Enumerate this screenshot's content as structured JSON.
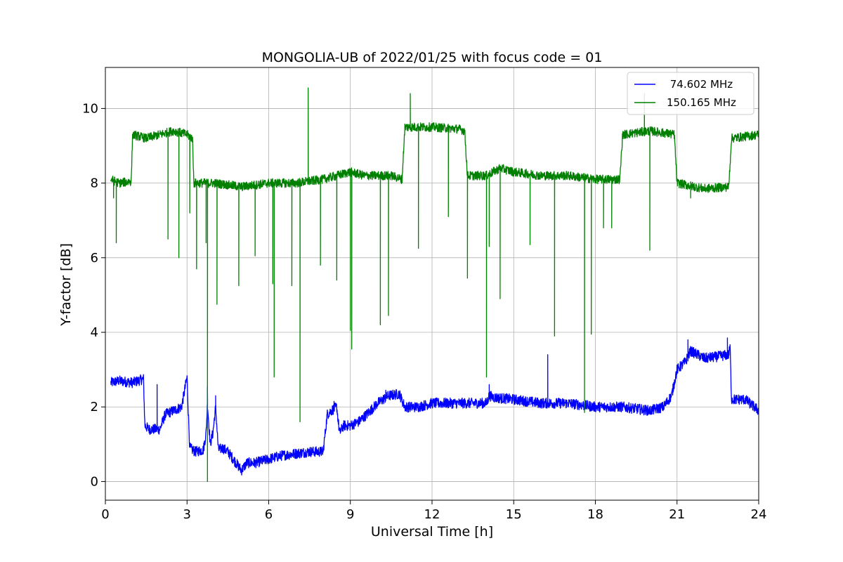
{
  "chart_data": {
    "type": "line",
    "title": "MONGOLIA-UB of 2022/01/25 with focus code = 01",
    "xlabel": "Universal Time [h]",
    "ylabel": "Y-factor [dB]",
    "xlim": [
      0,
      24
    ],
    "ylim": [
      -0.5,
      11.1
    ],
    "xticks": [
      0,
      3,
      6,
      9,
      12,
      15,
      18,
      21,
      24
    ],
    "yticks": [
      0,
      2,
      4,
      6,
      8,
      10
    ],
    "grid": true,
    "legend_position": "top-right",
    "series": [
      {
        "name": " 74.602 MHz",
        "color": "#0000ff",
        "noise": 0.14,
        "x": [
          0.2,
          0.5,
          1.0,
          1.4,
          1.45,
          1.6,
          2.0,
          2.2,
          2.5,
          2.8,
          2.95,
          3.0,
          3.05,
          3.1,
          3.3,
          3.6,
          3.7,
          3.75,
          3.85,
          3.95,
          4.05,
          4.15,
          4.3,
          4.5,
          4.8,
          5.0,
          5.2,
          5.5,
          6.0,
          6.5,
          7.0,
          7.5,
          8.0,
          8.15,
          8.3,
          8.5,
          8.6,
          8.75,
          9.0,
          9.3,
          9.6,
          10.0,
          10.4,
          10.8,
          11.0,
          11.5,
          12.0,
          13.0,
          14.0,
          14.1,
          14.3,
          15.0,
          16.0,
          17.0,
          18.0,
          19.0,
          20.0,
          20.5,
          20.8,
          21.0,
          21.3,
          21.5,
          22.0,
          22.5,
          22.9,
          22.95,
          23.0,
          23.5,
          24.0
        ],
        "y": [
          2.65,
          2.7,
          2.65,
          2.75,
          1.5,
          1.4,
          1.4,
          1.8,
          1.9,
          2.0,
          2.6,
          2.8,
          1.8,
          0.9,
          0.8,
          0.85,
          1.3,
          2.1,
          1.0,
          1.3,
          2.0,
          0.85,
          0.9,
          0.8,
          0.5,
          0.3,
          0.5,
          0.5,
          0.6,
          0.7,
          0.75,
          0.8,
          0.8,
          1.8,
          1.9,
          2.0,
          1.3,
          1.5,
          1.5,
          1.6,
          1.8,
          2.1,
          2.3,
          2.35,
          2.0,
          2.0,
          2.1,
          2.1,
          2.1,
          2.3,
          2.25,
          2.2,
          2.1,
          2.1,
          2.0,
          2.0,
          1.9,
          2.0,
          2.3,
          3.0,
          3.2,
          3.5,
          3.3,
          3.35,
          3.4,
          3.6,
          2.2,
          2.2,
          1.9
        ],
        "spikes": [
          {
            "x": 1.9,
            "y": 2.6
          },
          {
            "x": 3.75,
            "y": 2.55
          },
          {
            "x": 4.05,
            "y": 2.3
          },
          {
            "x": 8.4,
            "y": 2.15
          },
          {
            "x": 10.3,
            "y": 2.45
          },
          {
            "x": 14.1,
            "y": 2.6
          },
          {
            "x": 16.25,
            "y": 3.4
          },
          {
            "x": 21.4,
            "y": 3.8
          },
          {
            "x": 22.85,
            "y": 3.85
          }
        ]
      },
      {
        "name": "150.165 MHz",
        "color": "#008000",
        "noise": 0.12,
        "x": [
          0.2,
          0.5,
          0.95,
          1.0,
          1.5,
          2.0,
          2.5,
          3.0,
          3.2,
          3.25,
          4.0,
          5.0,
          6.0,
          7.0,
          8.0,
          8.5,
          9.0,
          9.5,
          10.0,
          10.5,
          10.9,
          11.0,
          12.0,
          13.0,
          13.2,
          13.3,
          14.0,
          14.5,
          15.0,
          16.0,
          17.0,
          18.0,
          18.9,
          19.0,
          20.0,
          20.9,
          21.0,
          22.0,
          22.9,
          23.0,
          24.0
        ],
        "y": [
          8.1,
          8.0,
          8.05,
          9.3,
          9.2,
          9.3,
          9.4,
          9.3,
          9.2,
          8.0,
          8.0,
          7.9,
          8.0,
          8.0,
          8.1,
          8.2,
          8.3,
          8.2,
          8.2,
          8.2,
          8.1,
          9.5,
          9.5,
          9.45,
          9.4,
          8.2,
          8.2,
          8.4,
          8.3,
          8.2,
          8.2,
          8.1,
          8.1,
          9.3,
          9.4,
          9.3,
          8.0,
          7.85,
          7.9,
          9.2,
          9.3
        ],
        "spikes": [
          {
            "x": 0.3,
            "y": 7.6
          },
          {
            "x": 0.4,
            "y": 6.4
          },
          {
            "x": 2.3,
            "y": 6.5
          },
          {
            "x": 2.7,
            "y": 6.0
          },
          {
            "x": 3.1,
            "y": 7.2
          },
          {
            "x": 3.35,
            "y": 5.7
          },
          {
            "x": 3.7,
            "y": 6.4
          },
          {
            "x": 3.75,
            "y": 0.0
          },
          {
            "x": 4.1,
            "y": 4.75
          },
          {
            "x": 4.9,
            "y": 5.25
          },
          {
            "x": 5.5,
            "y": 6.05
          },
          {
            "x": 6.15,
            "y": 5.3
          },
          {
            "x": 6.2,
            "y": 2.8
          },
          {
            "x": 6.85,
            "y": 5.25
          },
          {
            "x": 7.15,
            "y": 1.6
          },
          {
            "x": 7.45,
            "y": 10.55
          },
          {
            "x": 7.9,
            "y": 5.8
          },
          {
            "x": 8.5,
            "y": 5.4
          },
          {
            "x": 9.0,
            "y": 4.05
          },
          {
            "x": 9.05,
            "y": 3.55
          },
          {
            "x": 10.1,
            "y": 4.2
          },
          {
            "x": 10.4,
            "y": 4.45
          },
          {
            "x": 11.2,
            "y": 10.4
          },
          {
            "x": 11.5,
            "y": 6.25
          },
          {
            "x": 12.6,
            "y": 7.1
          },
          {
            "x": 13.3,
            "y": 5.45
          },
          {
            "x": 14.0,
            "y": 2.8
          },
          {
            "x": 14.1,
            "y": 6.3
          },
          {
            "x": 14.5,
            "y": 4.9
          },
          {
            "x": 15.6,
            "y": 6.35
          },
          {
            "x": 16.5,
            "y": 3.9
          },
          {
            "x": 17.6,
            "y": 1.85
          },
          {
            "x": 17.85,
            "y": 3.95
          },
          {
            "x": 18.3,
            "y": 6.8
          },
          {
            "x": 18.6,
            "y": 6.8
          },
          {
            "x": 19.8,
            "y": 10.4
          },
          {
            "x": 20.0,
            "y": 6.2
          },
          {
            "x": 21.5,
            "y": 7.6
          }
        ]
      }
    ]
  }
}
